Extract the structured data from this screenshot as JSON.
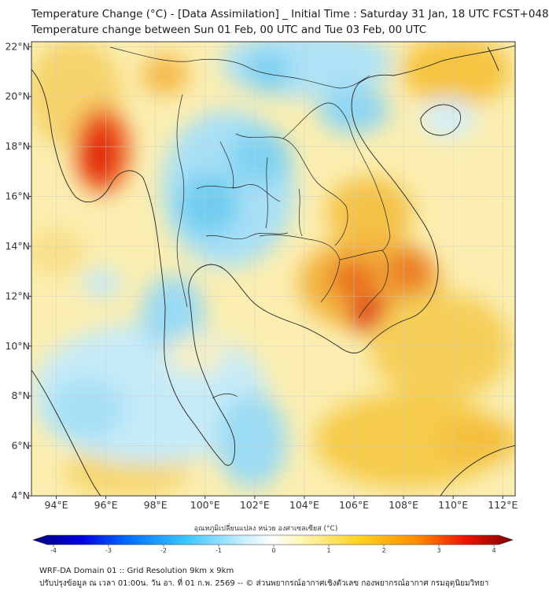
{
  "header": {
    "title_line1": "Temperature Change (°C) - [Data Assimilation] _ Initial Time : Saturday 31 Jan, 18 UTC FCST+048",
    "title_line2": "Temperature change between Sun 01 Feb, 00 UTC and Tue 03 Feb, 00 UTC"
  },
  "map": {
    "lon_labels": [
      "94°E",
      "96°E",
      "98°E",
      "100°E",
      "102°E",
      "104°E",
      "106°E",
      "108°E",
      "110°E",
      "112°E"
    ],
    "lat_labels": [
      "22°N",
      "20°N",
      "18°N",
      "16°N",
      "14°N",
      "12°N",
      "10°N",
      "8°N",
      "6°N",
      "4°N"
    ],
    "lon_range": [
      93,
      112.5
    ],
    "lat_range": [
      4,
      22.2
    ]
  },
  "colorbar": {
    "title": "อุณหภูมิเปลี่ยนแปลง หน่วย องศาเซลเซียส (°C)",
    "ticks": [
      "-4",
      "-3",
      "-2",
      "-1",
      "0",
      "1",
      "2",
      "3",
      "4"
    ],
    "range": [
      -4,
      4
    ],
    "colors": [
      "#00007f",
      "#0000e0",
      "#0070ff",
      "#3cc8ff",
      "#c8f0ff",
      "#ffffff",
      "#fff5b4",
      "#ffd21e",
      "#ff8c00",
      "#f01400",
      "#7f0000"
    ]
  },
  "footer": {
    "line1": "WRF-DA Domain 01 :: Grid Resolution 9km x 9km",
    "line2": "ปรับปรุงข้อมูล ณ เวลา 01:00น. วัน อา. ที่ 01 ก.พ. 2569 -- © ส่วนพยากรณ์อากาศเชิงตัวเลข กองพยากรณ์อากาศ กรมอุตุนิยมวิทยา"
  }
}
